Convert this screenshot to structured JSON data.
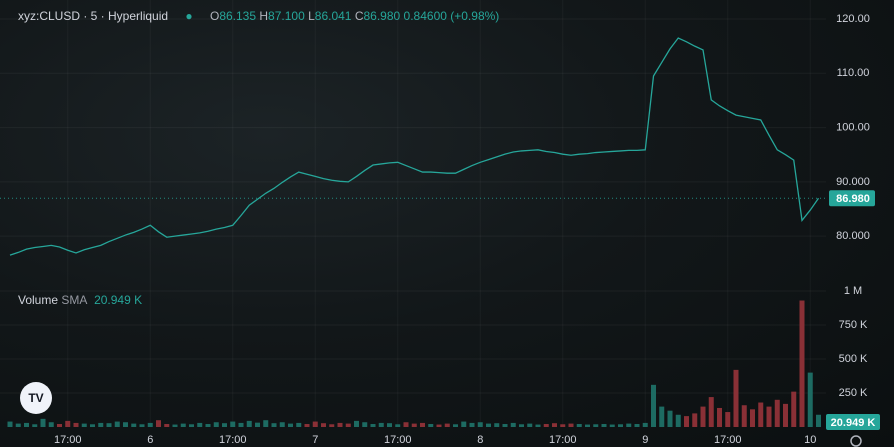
{
  "header": {
    "symbol": "xyz:CLUSD · 5 · Hyperliquid",
    "open": "O",
    "open_value": "86.135",
    "high": "H",
    "high_value": "87.100",
    "low": "L",
    "low_value": "86.041",
    "close": "C",
    "close_value": "86.980",
    "change": "0.84600 (+0.98%)"
  },
  "chart_data": [
    {
      "type": "line",
      "categories": [
        null,
        null,
        null,
        null,
        null,
        null,
        null,
        "17:00",
        null,
        null,
        null,
        null,
        null,
        null,
        null,
        null,
        null,
        "6",
        null,
        null,
        null,
        null,
        null,
        null,
        null,
        null,
        null,
        "17:00",
        null,
        null,
        null,
        null,
        null,
        null,
        null,
        null,
        null,
        "7",
        null,
        null,
        null,
        null,
        null,
        null,
        null,
        null,
        null,
        "17:00",
        null,
        null,
        null,
        null,
        null,
        null,
        null,
        null,
        null,
        "8",
        null,
        null,
        null,
        null,
        null,
        null,
        null,
        null,
        null,
        "17:00",
        null,
        null,
        null,
        null,
        null,
        null,
        null,
        null,
        null,
        "9",
        null,
        null,
        null,
        null,
        null,
        null,
        null,
        null,
        null,
        "17:00",
        null,
        null,
        null,
        null,
        null,
        null,
        null,
        null,
        null,
        "10",
        null
      ],
      "series": [
        {
          "color": "#26a69a",
          "values": [
            76.5,
            77.0,
            77.6,
            77.9,
            78.1,
            78.3,
            78.0,
            77.4,
            76.9,
            77.5,
            77.9,
            78.3,
            79.0,
            79.6,
            80.2,
            80.7,
            81.3,
            82.0,
            80.8,
            79.8,
            80.0,
            80.2,
            80.4,
            80.6,
            80.9,
            81.3,
            81.6,
            82.0,
            83.8,
            85.7,
            86.8,
            87.9,
            88.8,
            89.9,
            90.9,
            91.8,
            91.4,
            91.0,
            90.6,
            90.3,
            90.1,
            90.0,
            91.0,
            92.1,
            93.1,
            93.3,
            93.5,
            93.6,
            93.0,
            92.4,
            91.8,
            91.8,
            91.7,
            91.6,
            91.6,
            92.3,
            93.0,
            93.6,
            94.1,
            94.6,
            95.1,
            95.5,
            95.7,
            95.8,
            95.9,
            95.6,
            95.4,
            95.1,
            94.9,
            95.1,
            95.2,
            95.4,
            95.5,
            95.6,
            95.7,
            95.8,
            95.8,
            95.9,
            109.5,
            112.0,
            114.5,
            116.5,
            115.8,
            115.0,
            114.3,
            105.1,
            104.0,
            103.1,
            102.3,
            102.0,
            101.7,
            101.4,
            98.6,
            95.9,
            95.0,
            94.0,
            82.9,
            84.8,
            86.98
          ]
        }
      ],
      "ylim": [
        71,
        123.5
      ],
      "yticks": [
        {
          "value": 80,
          "label": "80.000"
        },
        {
          "value": 90,
          "label": "90.000"
        },
        {
          "value": 100,
          "label": "100.00"
        },
        {
          "value": 110,
          "label": "110.00"
        },
        {
          "value": 120,
          "label": "120.00"
        }
      ],
      "last_price": {
        "value": 86.98,
        "label": "86.980"
      }
    },
    {
      "type": "bar",
      "title": "Volume",
      "indicator": "SMA",
      "indicator_value": "20.949 K",
      "colors": {
        "up": "#1d6b62",
        "down": "#8a3036"
      },
      "values": [
        40000,
        25000,
        30000,
        20000,
        60000,
        35000,
        22000,
        45000,
        30000,
        25000,
        20000,
        30000,
        28000,
        40000,
        35000,
        25000,
        20000,
        30000,
        50000,
        22000,
        18000,
        25000,
        20000,
        30000,
        22000,
        35000,
        28000,
        40000,
        30000,
        45000,
        32000,
        50000,
        28000,
        35000,
        25000,
        30000,
        22000,
        40000,
        28000,
        20000,
        30000,
        25000,
        45000,
        35000,
        22000,
        30000,
        28000,
        20000,
        35000,
        25000,
        30000,
        22000,
        18000,
        25000,
        20000,
        40000,
        30000,
        35000,
        25000,
        28000,
        22000,
        30000,
        20000,
        25000,
        18000,
        22000,
        28000,
        20000,
        25000,
        22000,
        18000,
        20000,
        22000,
        18000,
        20000,
        25000,
        22000,
        30000,
        310000,
        150000,
        120000,
        90000,
        80000,
        100000,
        150000,
        220000,
        140000,
        110000,
        420000,
        160000,
        130000,
        180000,
        150000,
        200000,
        170000,
        260000,
        930000,
        400000,
        90000
      ],
      "ylim": [
        0,
        1040000
      ],
      "yticks": [
        {
          "value": 250000,
          "label": "250 K"
        },
        {
          "value": 500000,
          "label": "500 K"
        },
        {
          "value": 750000,
          "label": "750 K"
        },
        {
          "value": 1000000,
          "label": "1 M"
        }
      ],
      "last_label": "20.949 K"
    }
  ]
}
